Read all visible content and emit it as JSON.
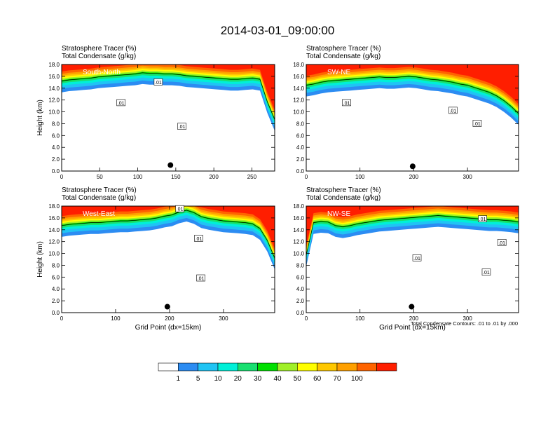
{
  "figure": {
    "title": "2014-03-01_09:00:00",
    "contour_note": "Total Condensate Contours: .01 to .01 by .000",
    "colorbar": {
      "levels": [
        "1",
        "5",
        "10",
        "20",
        "30",
        "40",
        "50",
        "60",
        "70",
        "100"
      ],
      "colors": [
        "#ffffff",
        "#2c8cf2",
        "#20c4f4",
        "#00f0d8",
        "#18e070",
        "#00e000",
        "#a0f028",
        "#ffff00",
        "#ffc800",
        "#ffa000",
        "#ff6400",
        "#ff1e00"
      ]
    }
  },
  "chart_data": [
    {
      "type": "heatmap",
      "panel": "South-North",
      "title_line1": "Stratosphere Tracer   (%)",
      "title_line2": "Total Condensate   (g/kg)",
      "ylabel": "Height (km)",
      "xlabel": "",
      "xlim": [
        0,
        280
      ],
      "ylim": [
        0,
        18
      ],
      "xticks": [
        0,
        50,
        100,
        150,
        200,
        250
      ],
      "yticks": [
        "0.0",
        "2.0",
        "4.0",
        "6.0",
        "8.0",
        "10.0",
        "12.0",
        "14.0",
        "16.0",
        "18.0"
      ],
      "tropopause_km": [
        15.5,
        15.7,
        15.8,
        15.9,
        16.0,
        16.2,
        16.3,
        16.4,
        16.5,
        16.6,
        16.7,
        16.9,
        16.8,
        16.8,
        16.7,
        16.7,
        16.6,
        16.4,
        16.3,
        16.2,
        16.1,
        16.0,
        15.9,
        15.8,
        15.8,
        15.9,
        16.0,
        15.8,
        12.0,
        9.0
      ],
      "contour_labels": [
        {
          "text": ".01",
          "x": 127,
          "y": 15.0
        },
        {
          "text": ".01",
          "x": 78,
          "y": 11.5
        },
        {
          "text": ".01",
          "x": 158,
          "y": 7.5
        }
      ],
      "marker": {
        "x": 143,
        "y": 1.0
      }
    },
    {
      "type": "heatmap",
      "panel": "SW-NE",
      "title_line1": "Stratosphere Tracer   (%)",
      "title_line2": "Total Condensate   (g/kg)",
      "ylabel": "",
      "xlabel": "",
      "xlim": [
        0,
        395
      ],
      "ylim": [
        0,
        18
      ],
      "xticks": [
        0,
        100,
        200,
        300
      ],
      "yticks": [
        "0.0",
        "2.0",
        "4.0",
        "6.0",
        "8.0",
        "10.0",
        "12.0",
        "14.0",
        "16.0",
        "18.0"
      ],
      "tropopause_km": [
        14.8,
        15.0,
        15.3,
        15.5,
        15.6,
        15.7,
        15.8,
        15.9,
        16.0,
        16.1,
        16.2,
        16.1,
        16.1,
        16.2,
        16.3,
        16.2,
        16.0,
        15.8,
        15.7,
        15.5,
        15.3,
        15.0,
        14.8,
        14.4,
        14.0,
        13.6,
        13.0,
        12.2,
        11.2,
        10.0
      ],
      "contour_labels": [
        {
          "text": ".01",
          "x": 75,
          "y": 11.5
        },
        {
          "text": ".01",
          "x": 273,
          "y": 10.2
        },
        {
          "text": ".01",
          "x": 318,
          "y": 8.0
        }
      ],
      "marker": {
        "x": 198,
        "y": 0.8
      }
    },
    {
      "type": "heatmap",
      "panel": "West-East",
      "title_line1": "Stratosphere Tracer   (%)",
      "title_line2": "Total Condensate   (g/kg)",
      "ylabel": "Height (km)",
      "xlabel": "Grid Point (dx=15km)",
      "xlim": [
        0,
        395
      ],
      "ylim": [
        0,
        18
      ],
      "xticks": [
        0,
        100,
        200,
        300
      ],
      "yticks": [
        "0.0",
        "2.0",
        "4.0",
        "6.0",
        "8.0",
        "10.0",
        "12.0",
        "14.0",
        "16.0",
        "18.0"
      ],
      "tropopause_km": [
        15.0,
        15.2,
        15.3,
        15.4,
        15.5,
        15.5,
        15.6,
        15.7,
        15.8,
        15.8,
        15.9,
        16.0,
        16.1,
        16.3,
        16.6,
        16.8,
        17.3,
        17.6,
        17.2,
        16.5,
        16.2,
        16.0,
        15.8,
        15.7,
        15.6,
        15.5,
        15.3,
        14.5,
        12.5,
        9.5
      ],
      "contour_labels": [
        {
          "text": ".01",
          "x": 219,
          "y": 17.5
        },
        {
          "text": ".01",
          "x": 254,
          "y": 12.5
        },
        {
          "text": ".01",
          "x": 258,
          "y": 5.8
        }
      ],
      "marker": {
        "x": 196,
        "y": 1.0
      }
    },
    {
      "type": "heatmap",
      "panel": "NW-SE",
      "title_line1": "Stratosphere Tracer   (%)",
      "title_line2": "Total Condensate   (g/kg)",
      "ylabel": "",
      "xlabel": "Grid Point (dx=15km)",
      "xlim": [
        0,
        395
      ],
      "ylim": [
        0,
        18
      ],
      "xticks": [
        0,
        100,
        200,
        300
      ],
      "yticks": [
        "0.0",
        "2.0",
        "4.0",
        "6.0",
        "8.0",
        "10.0",
        "12.0",
        "14.0",
        "16.0",
        "18.0"
      ],
      "tropopause_km": [
        10.0,
        15.5,
        15.7,
        15.6,
        15.0,
        14.8,
        15.0,
        15.3,
        15.5,
        15.7,
        15.9,
        16.0,
        16.1,
        16.2,
        16.3,
        16.4,
        16.5,
        16.6,
        16.7,
        16.6,
        16.5,
        16.4,
        16.3,
        16.2,
        16.1,
        16.0,
        16.0,
        15.9,
        15.8,
        15.6
      ],
      "contour_labels": [
        {
          "text": ".01",
          "x": 328,
          "y": 15.8
        },
        {
          "text": ".01",
          "x": 364,
          "y": 11.8
        },
        {
          "text": ".01",
          "x": 206,
          "y": 9.2
        },
        {
          "text": ".01",
          "x": 335,
          "y": 6.8
        }
      ],
      "marker": {
        "x": 196,
        "y": 1.0
      }
    }
  ]
}
